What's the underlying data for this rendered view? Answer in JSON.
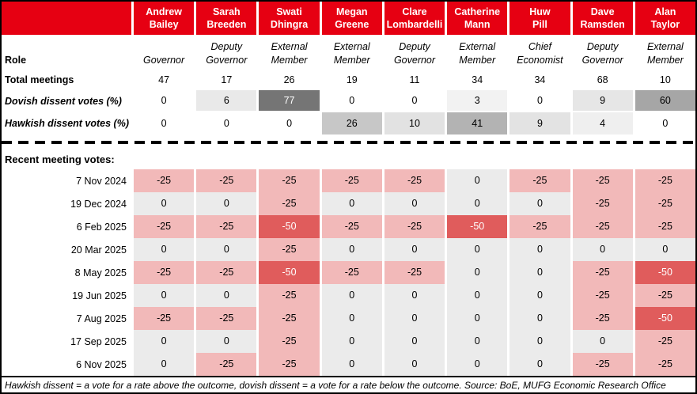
{
  "palette": {
    "header_red": "#E60012",
    "cut25_bg": "#F2B9B9",
    "cut50_bg": "#E05C5C",
    "cut50_fg": "#FFFFFF",
    "hold_bg": "#EBEBEB",
    "default_fg": "#000000"
  },
  "chart_data": {
    "type": "table",
    "section_label": "Recent meeting votes:",
    "row_labels": {
      "role": "Role",
      "total_meetings": "Total meetings",
      "dovish": "Dovish dissent votes (%)",
      "hawkish": "Hawkish dissent votes (%)"
    },
    "members": [
      {
        "name_lines": [
          "Andrew",
          "Bailey"
        ],
        "role": "Governor",
        "total_meetings": 47,
        "dovish_dissent_pct": 0,
        "hawkish_dissent_pct": 0,
        "dovish_bg": "#FFFFFF",
        "dovish_fg": "#000000",
        "hawkish_bg": "#FFFFFF"
      },
      {
        "name_lines": [
          "Sarah",
          "Breeden"
        ],
        "role": "Deputy Governor",
        "total_meetings": 17,
        "dovish_dissent_pct": 6,
        "hawkish_dissent_pct": 0,
        "dovish_bg": "#E9E9E9",
        "dovish_fg": "#000000",
        "hawkish_bg": "#FFFFFF"
      },
      {
        "name_lines": [
          "Swati",
          "Dhingra"
        ],
        "role": "External Member",
        "total_meetings": 26,
        "dovish_dissent_pct": 77,
        "hawkish_dissent_pct": 0,
        "dovish_bg": "#757575",
        "dovish_fg": "#FFFFFF",
        "hawkish_bg": "#FFFFFF"
      },
      {
        "name_lines": [
          "Megan",
          "Greene"
        ],
        "role": "External Member",
        "total_meetings": 19,
        "dovish_dissent_pct": 0,
        "hawkish_dissent_pct": 26,
        "dovish_bg": "#FFFFFF",
        "dovish_fg": "#000000",
        "hawkish_bg": "#C7C7C7"
      },
      {
        "name_lines": [
          "Clare",
          "Lombardelli"
        ],
        "role": "Deputy Governor",
        "total_meetings": 11,
        "dovish_dissent_pct": 0,
        "hawkish_dissent_pct": 10,
        "dovish_bg": "#FFFFFF",
        "dovish_fg": "#000000",
        "hawkish_bg": "#E2E2E2"
      },
      {
        "name_lines": [
          "Catherine",
          "Mann"
        ],
        "role": "External Member",
        "total_meetings": 34,
        "dovish_dissent_pct": 3,
        "hawkish_dissent_pct": 41,
        "dovish_bg": "#F2F2F2",
        "dovish_fg": "#000000",
        "hawkish_bg": "#B3B3B3"
      },
      {
        "name_lines": [
          "Huw",
          "Pill"
        ],
        "role": "Chief Economist",
        "total_meetings": 34,
        "dovish_dissent_pct": 0,
        "hawkish_dissent_pct": 9,
        "dovish_bg": "#FFFFFF",
        "dovish_fg": "#000000",
        "hawkish_bg": "#E3E3E3"
      },
      {
        "name_lines": [
          "Dave",
          "Ramsden"
        ],
        "role": "Deputy Governor",
        "total_meetings": 68,
        "dovish_dissent_pct": 9,
        "hawkish_dissent_pct": 4,
        "dovish_bg": "#E6E6E6",
        "dovish_fg": "#000000",
        "hawkish_bg": "#EFEFEF"
      },
      {
        "name_lines": [
          "Alan",
          "Taylor"
        ],
        "role": "External Member",
        "total_meetings": 10,
        "dovish_dissent_pct": 60,
        "hawkish_dissent_pct": 0,
        "dovish_bg": "#A6A6A6",
        "dovish_fg": "#000000",
        "hawkish_bg": "#FFFFFF"
      }
    ],
    "meetings": [
      {
        "date": "7 Nov 2024",
        "votes": [
          -25,
          -25,
          -25,
          -25,
          -25,
          0,
          -25,
          -25,
          -25
        ]
      },
      {
        "date": "19 Dec 2024",
        "votes": [
          0,
          0,
          -25,
          0,
          0,
          0,
          0,
          -25,
          -25
        ]
      },
      {
        "date": "6 Feb 2025",
        "votes": [
          -25,
          -25,
          -50,
          -25,
          -25,
          -50,
          -25,
          -25,
          -25
        ]
      },
      {
        "date": "20 Mar 2025",
        "votes": [
          0,
          0,
          -25,
          0,
          0,
          0,
          0,
          0,
          0
        ]
      },
      {
        "date": "8 May 2025",
        "votes": [
          -25,
          -25,
          -50,
          -25,
          -25,
          0,
          0,
          -25,
          -50
        ]
      },
      {
        "date": "19 Jun 2025",
        "votes": [
          0,
          0,
          -25,
          0,
          0,
          0,
          0,
          -25,
          -25
        ]
      },
      {
        "date": "7 Aug 2025",
        "votes": [
          -25,
          -25,
          -25,
          0,
          0,
          0,
          0,
          -25,
          -50
        ]
      },
      {
        "date": "17 Sep 2025",
        "votes": [
          0,
          0,
          -25,
          0,
          0,
          0,
          0,
          0,
          -25
        ]
      },
      {
        "date": "6 Nov 2025",
        "votes": [
          0,
          -25,
          -25,
          0,
          0,
          0,
          0,
          -25,
          -25
        ]
      }
    ],
    "footnote": "Hawkish dissent = a vote for a rate above the outcome, dovish dissent = a vote for a rate below the outcome. Source: BoE, MUFG Economic Research Office"
  }
}
